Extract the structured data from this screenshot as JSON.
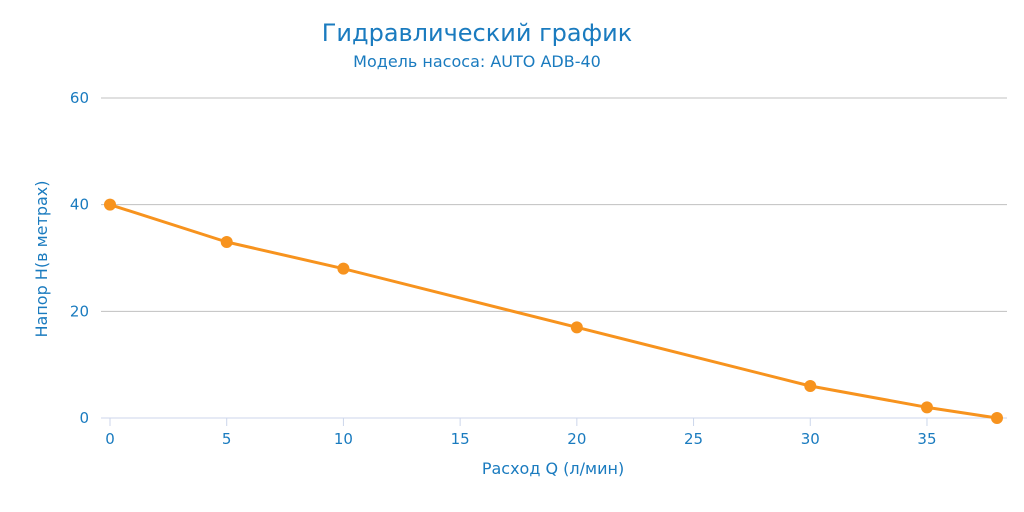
{
  "chart_data": {
    "type": "line",
    "title": "Гидравлический график",
    "subtitle": "Модель насоса: AUTO ADB-40",
    "xlabel": "Расход Q (л/мин)",
    "ylabel": "Напор H(в метрах)",
    "xlim": [
      0,
      38
    ],
    "ylim": [
      0,
      60
    ],
    "x_ticks": [
      "0",
      "5",
      "10",
      "15",
      "20",
      "25",
      "30",
      "35"
    ],
    "y_ticks": [
      "0",
      "20",
      "40",
      "60"
    ],
    "grid": true,
    "legend": false,
    "series": [
      {
        "color": "#f7931e",
        "points": [
          {
            "x": 0,
            "y": 40
          },
          {
            "x": 5,
            "y": 33
          },
          {
            "x": 10,
            "y": 28
          },
          {
            "x": 20,
            "y": 17
          },
          {
            "x": 30,
            "y": 6
          },
          {
            "x": 35,
            "y": 2
          },
          {
            "x": 38,
            "y": 0
          }
        ]
      }
    ],
    "colors": {
      "text": "#1a7bbf",
      "grid": "#c0c0c0",
      "axis": "#ccd6eb"
    }
  }
}
